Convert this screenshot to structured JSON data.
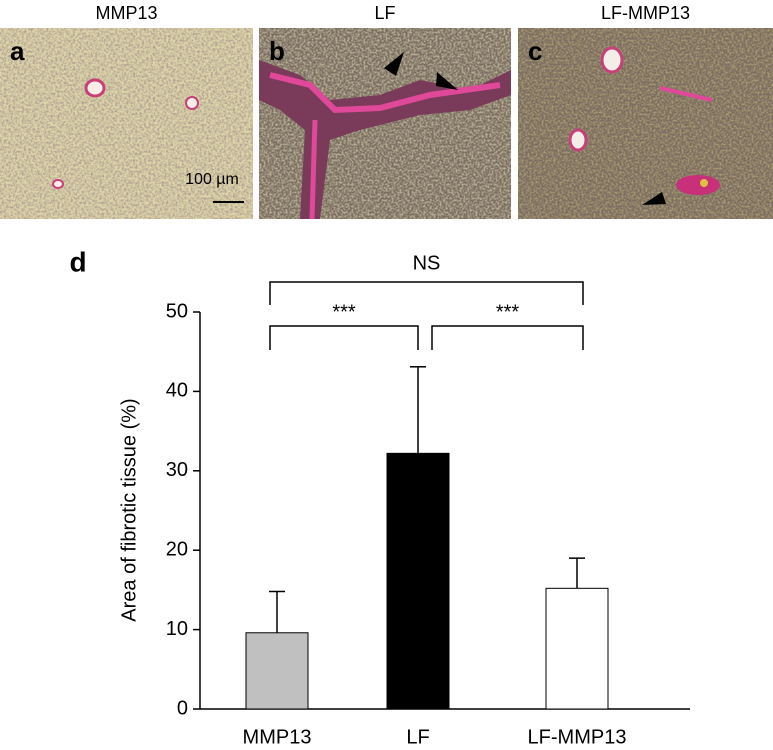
{
  "panels": [
    {
      "title": "MMP13",
      "letter": "a",
      "scale_bar": "100 µm"
    },
    {
      "title": "LF",
      "letter": "b"
    },
    {
      "title": "LF-MMP13",
      "letter": "c"
    }
  ],
  "chart_data": {
    "type": "bar",
    "panel_letter": "d",
    "y_label": "Area of fibrotic tissue (%)",
    "categories": [
      "MMP13",
      "LF",
      "LF-MMP13"
    ],
    "values": [
      9.6,
      32.2,
      15.2
    ],
    "errors": [
      5.2,
      10.9,
      3.8
    ],
    "colors": [
      "#c0c0c0",
      "#000000",
      "#ffffff"
    ],
    "ylim": [
      0,
      50
    ],
    "yticks": [
      0,
      10,
      20,
      30,
      40,
      50
    ],
    "annotations": [
      {
        "text": "***",
        "from": "MMP13",
        "to": "LF"
      },
      {
        "text": "***",
        "from": "LF",
        "to": "LF-MMP13"
      },
      {
        "text": "NS",
        "from": "MMP13",
        "to": "LF-MMP13"
      }
    ]
  }
}
